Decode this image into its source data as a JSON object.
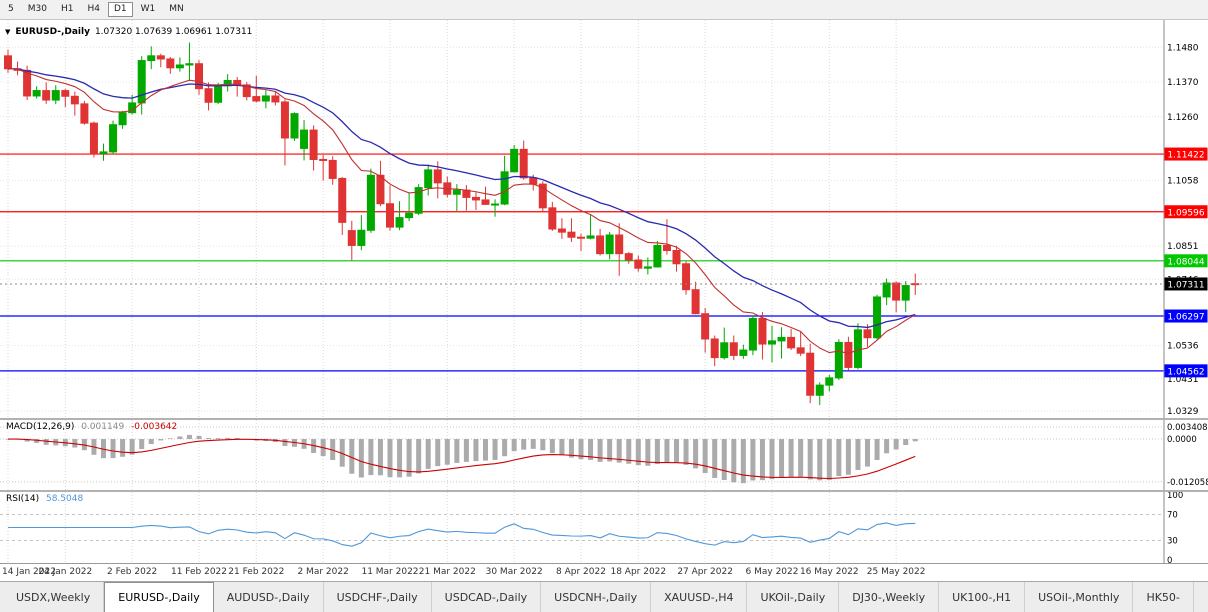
{
  "toolbar": {
    "timeframes": [
      {
        "label": "5",
        "active": false
      },
      {
        "label": "M30",
        "active": false
      },
      {
        "label": "H1",
        "active": false
      },
      {
        "label": "H4",
        "active": false
      },
      {
        "label": "D1",
        "active": true
      },
      {
        "label": "W1",
        "active": false
      },
      {
        "label": "MN",
        "active": false
      }
    ]
  },
  "chart_data": {
    "type": "candlestick",
    "title": "EURUSD-,Daily",
    "ohlc_text": "1.07320 1.07639 1.06961 1.07311",
    "ohlc_display": {
      "open": "1.07320",
      "high": "1.07639",
      "low": "1.06961",
      "close": "1.07311"
    },
    "y_range": [
      1.0307,
      1.156
    ],
    "y_axis_ticks": [
      {
        "v": 1.148,
        "t": "1.1480"
      },
      {
        "v": 1.137,
        "t": "1.1370"
      },
      {
        "v": 1.126,
        "t": "1.1260"
      },
      {
        "v": 1.1058,
        "t": "1.1058"
      },
      {
        "v": 1.0851,
        "t": "1.0851"
      },
      {
        "v": 1.0746,
        "t": "1.0746"
      },
      {
        "v": 1.0536,
        "t": "1.0536"
      },
      {
        "v": 1.0431,
        "t": "1.0431"
      },
      {
        "v": 1.0329,
        "t": "1.0329"
      }
    ],
    "horizontal_lines": [
      {
        "value": 1.11422,
        "label": "1.11422",
        "color": "#ff0000"
      },
      {
        "value": 1.09596,
        "label": "1.09596",
        "color": "#ff0000"
      },
      {
        "value": 1.08044,
        "label": "1.08044",
        "color": "#00c800"
      },
      {
        "value": 1.06297,
        "label": "1.06297",
        "color": "#0000ff"
      },
      {
        "value": 1.04562,
        "label": "1.04562",
        "color": "#0000ff"
      }
    ],
    "current_price": {
      "value": 1.07311,
      "label": "1.07311",
      "bg": "#000000",
      "fg": "#ffffff"
    },
    "x_ticks": [
      {
        "i": 0,
        "label": "14 Jan 2022"
      },
      {
        "i": 6,
        "label": "24 Jan 2022"
      },
      {
        "i": 13,
        "label": "2 Feb 2022"
      },
      {
        "i": 20,
        "label": "11 Feb 2022"
      },
      {
        "i": 26,
        "label": "21 Feb 2022"
      },
      {
        "i": 33,
        "label": "2 Mar 2022"
      },
      {
        "i": 40,
        "label": "11 Mar 2022"
      },
      {
        "i": 46,
        "label": "21 Mar 2022"
      },
      {
        "i": 53,
        "label": "30 Mar 2022"
      },
      {
        "i": 60,
        "label": "8 Apr 2022"
      },
      {
        "i": 66,
        "label": "18 Apr 2022"
      },
      {
        "i": 73,
        "label": "27 Apr 2022"
      },
      {
        "i": 80,
        "label": "6 May 2022"
      },
      {
        "i": 86,
        "label": "16 May 2022"
      },
      {
        "i": 93,
        "label": "25 May 2022"
      }
    ],
    "candles": [
      [
        1.1453,
        1.1473,
        1.1399,
        1.1412
      ],
      [
        1.1412,
        1.1435,
        1.1391,
        1.1407
      ],
      [
        1.1407,
        1.1422,
        1.1313,
        1.1326
      ],
      [
        1.1326,
        1.1357,
        1.1318,
        1.1343
      ],
      [
        1.1343,
        1.1369,
        1.1301,
        1.1313
      ],
      [
        1.1313,
        1.136,
        1.13,
        1.1343
      ],
      [
        1.1343,
        1.1349,
        1.1291,
        1.1325
      ],
      [
        1.1325,
        1.134,
        1.1264,
        1.1301
      ],
      [
        1.1301,
        1.131,
        1.1235,
        1.124
      ],
      [
        1.124,
        1.1245,
        1.1131,
        1.1144
      ],
      [
        1.1144,
        1.1175,
        1.1121,
        1.1149
      ],
      [
        1.1149,
        1.1248,
        1.1141,
        1.1235
      ],
      [
        1.1235,
        1.1279,
        1.1222,
        1.1273
      ],
      [
        1.1273,
        1.133,
        1.1267,
        1.1304
      ],
      [
        1.1304,
        1.1452,
        1.1267,
        1.1438
      ],
      [
        1.1438,
        1.1483,
        1.1411,
        1.1453
      ],
      [
        1.1453,
        1.146,
        1.1417,
        1.1443
      ],
      [
        1.1443,
        1.1449,
        1.1396,
        1.1415
      ],
      [
        1.1415,
        1.1448,
        1.1403,
        1.1424
      ],
      [
        1.1424,
        1.1495,
        1.1374,
        1.1428
      ],
      [
        1.1428,
        1.1439,
        1.133,
        1.1349
      ],
      [
        1.1349,
        1.1369,
        1.128,
        1.1306
      ],
      [
        1.1306,
        1.1368,
        1.13,
        1.1358
      ],
      [
        1.1358,
        1.1395,
        1.134,
        1.1375
      ],
      [
        1.1375,
        1.1386,
        1.1324,
        1.1361
      ],
      [
        1.1361,
        1.137,
        1.1312,
        1.1324
      ],
      [
        1.1324,
        1.139,
        1.1305,
        1.131
      ],
      [
        1.131,
        1.1344,
        1.1287,
        1.1326
      ],
      [
        1.1326,
        1.1342,
        1.1296,
        1.1307
      ],
      [
        1.1307,
        1.1315,
        1.1106,
        1.1193
      ],
      [
        1.1193,
        1.1274,
        1.1184,
        1.127
      ],
      [
        1.116,
        1.125,
        1.1122,
        1.1218
      ],
      [
        1.1218,
        1.1233,
        1.109,
        1.1125
      ],
      [
        1.1125,
        1.1139,
        1.1058,
        1.1122
      ],
      [
        1.1122,
        1.1135,
        1.1045,
        1.1065
      ],
      [
        1.1065,
        1.107,
        1.0886,
        1.0926
      ],
      [
        1.09,
        1.0931,
        1.0806,
        1.0853
      ],
      [
        1.0853,
        1.0949,
        1.0838,
        1.0901
      ],
      [
        1.0901,
        1.1096,
        1.0893,
        1.1075
      ],
      [
        1.1075,
        1.1121,
        1.0977,
        1.0985
      ],
      [
        1.0985,
        1.1043,
        1.09,
        1.0911
      ],
      [
        1.0911,
        1.0993,
        1.0901,
        1.0941
      ],
      [
        1.0941,
        1.1019,
        1.093,
        1.0955
      ],
      [
        1.0955,
        1.1047,
        1.0949,
        1.1036
      ],
      [
        1.1036,
        1.1109,
        1.1011,
        1.1092
      ],
      [
        1.1092,
        1.1119,
        1.1002,
        1.1051
      ],
      [
        1.1051,
        1.1071,
        1.1005,
        1.1015
      ],
      [
        1.1015,
        1.1047,
        1.0962,
        1.1028
      ],
      [
        1.1028,
        1.1044,
        1.0963,
        1.1005
      ],
      [
        1.1005,
        1.1021,
        1.0965,
        1.0997
      ],
      [
        1.0997,
        1.1039,
        1.0981,
        1.0983
      ],
      [
        1.0983,
        1.0999,
        1.0944,
        1.0984
      ],
      [
        1.0984,
        1.1137,
        1.098,
        1.1086
      ],
      [
        1.1086,
        1.1171,
        1.1084,
        1.1157
      ],
      [
        1.1157,
        1.1185,
        1.1061,
        1.1067
      ],
      [
        1.1067,
        1.1077,
        1.1027,
        1.1047
      ],
      [
        1.1047,
        1.1056,
        1.096,
        1.0972
      ],
      [
        1.0972,
        1.0991,
        1.0899,
        1.0905
      ],
      [
        1.0905,
        1.0939,
        1.0874,
        1.0895
      ],
      [
        1.0895,
        1.0939,
        1.0864,
        1.0879
      ],
      [
        1.0879,
        1.089,
        1.0836,
        1.0876
      ],
      [
        1.0876,
        1.095,
        1.0872,
        1.0883
      ],
      [
        1.0883,
        1.0905,
        1.0821,
        1.0827
      ],
      [
        1.0827,
        1.0896,
        1.0809,
        1.0886
      ],
      [
        1.0886,
        1.0923,
        1.0757,
        1.0827
      ],
      [
        1.0827,
        1.0832,
        1.0795,
        1.0807
      ],
      [
        1.0807,
        1.0821,
        1.077,
        1.0781
      ],
      [
        1.0781,
        1.0815,
        1.0761,
        1.0785
      ],
      [
        1.0785,
        1.0867,
        1.0783,
        1.0853
      ],
      [
        1.0853,
        1.0936,
        1.0824,
        1.0837
      ],
      [
        1.0837,
        1.0852,
        1.077,
        1.0795
      ],
      [
        1.0795,
        1.0803,
        1.0697,
        1.0713
      ],
      [
        1.0713,
        1.0738,
        1.0635,
        1.0637
      ],
      [
        1.0637,
        1.0655,
        1.0514,
        1.0557
      ],
      [
        1.0557,
        1.0568,
        1.0471,
        1.0498
      ],
      [
        1.0498,
        1.0593,
        1.0492,
        1.0545
      ],
      [
        1.0545,
        1.0568,
        1.049,
        1.0505
      ],
      [
        1.0505,
        1.0539,
        1.0494,
        1.0522
      ],
      [
        1.0522,
        1.0632,
        1.0506,
        1.0622
      ],
      [
        1.0622,
        1.0642,
        1.0492,
        1.0541
      ],
      [
        1.0541,
        1.0599,
        1.0483,
        1.0551
      ],
      [
        1.0551,
        1.0594,
        1.0495,
        1.0562
      ],
      [
        1.0562,
        1.0589,
        1.0522,
        1.0529
      ],
      [
        1.0529,
        1.0579,
        1.0503,
        1.0512
      ],
      [
        1.0512,
        1.0542,
        1.0354,
        1.0379
      ],
      [
        1.0379,
        1.042,
        1.0348,
        1.0411
      ],
      [
        1.0411,
        1.0443,
        1.0391,
        1.0434
      ],
      [
        1.0434,
        1.0556,
        1.0427,
        1.0546
      ],
      [
        1.0546,
        1.0564,
        1.0458,
        1.0467
      ],
      [
        1.0467,
        1.0607,
        1.0461,
        1.0586
      ],
      [
        1.0586,
        1.0604,
        1.0532,
        1.0561
      ],
      [
        1.0561,
        1.0697,
        1.0556,
        1.069
      ],
      [
        1.069,
        1.0748,
        1.0664,
        1.0734
      ],
      [
        1.0734,
        1.0739,
        1.0641,
        1.068
      ],
      [
        1.068,
        1.074,
        1.0642,
        1.0726
      ],
      [
        1.0732,
        1.0764,
        1.0696,
        1.0731
      ]
    ],
    "overlays": [
      {
        "name": "ma-fast",
        "color": "#c03030"
      },
      {
        "name": "ma-slow",
        "color": "#2a2ab0"
      }
    ],
    "indicators": [
      {
        "name": "MACD",
        "label": "MACD(12,26,9)",
        "main": "0.001149",
        "signal": "-0.003642",
        "axis_ticks": [
          {
            "v": 0.003408,
            "t": "0.003408"
          },
          {
            "v": 0,
            "t": "0.0000"
          },
          {
            "v": -0.012058,
            "t": "-0.012058"
          }
        ],
        "range": [
          -0.0138,
          0.0048
        ],
        "hist_color": "#ababab",
        "signal_color": "#cc0000"
      },
      {
        "name": "RSI",
        "label": "RSI(14)",
        "value": "58.5048",
        "axis_ticks": [
          {
            "v": 100,
            "t": "100"
          },
          {
            "v": 70,
            "t": "70"
          },
          {
            "v": 30,
            "t": "30"
          },
          {
            "v": 0,
            "t": "0"
          }
        ],
        "levels": [
          70,
          30
        ],
        "line_color": "#4e97d9"
      }
    ],
    "colors": {
      "candle_up": "#00a800",
      "candle_down": "#e03434",
      "grid": "#d8d8d8",
      "grid_h": "#e4e4e4",
      "axis_separator": "#8a8a8a"
    }
  },
  "tabs": [
    {
      "label": "USDX,Weekly",
      "active": false
    },
    {
      "label": "EURUSD-,Daily",
      "active": true
    },
    {
      "label": "AUDUSD-,Daily",
      "active": false
    },
    {
      "label": "USDCHF-,Daily",
      "active": false
    },
    {
      "label": "USDCAD-,Daily",
      "active": false
    },
    {
      "label": "USDCNH-,Daily",
      "active": false
    },
    {
      "label": "XAUUSD-,H4",
      "active": false
    },
    {
      "label": "UKOil-,Daily",
      "active": false
    },
    {
      "label": "DJ30-,Weekly",
      "active": false
    },
    {
      "label": "UK100-,H1",
      "active": false
    },
    {
      "label": "USOil-,Monthly",
      "active": false
    },
    {
      "label": "HK50-",
      "active": false
    }
  ]
}
